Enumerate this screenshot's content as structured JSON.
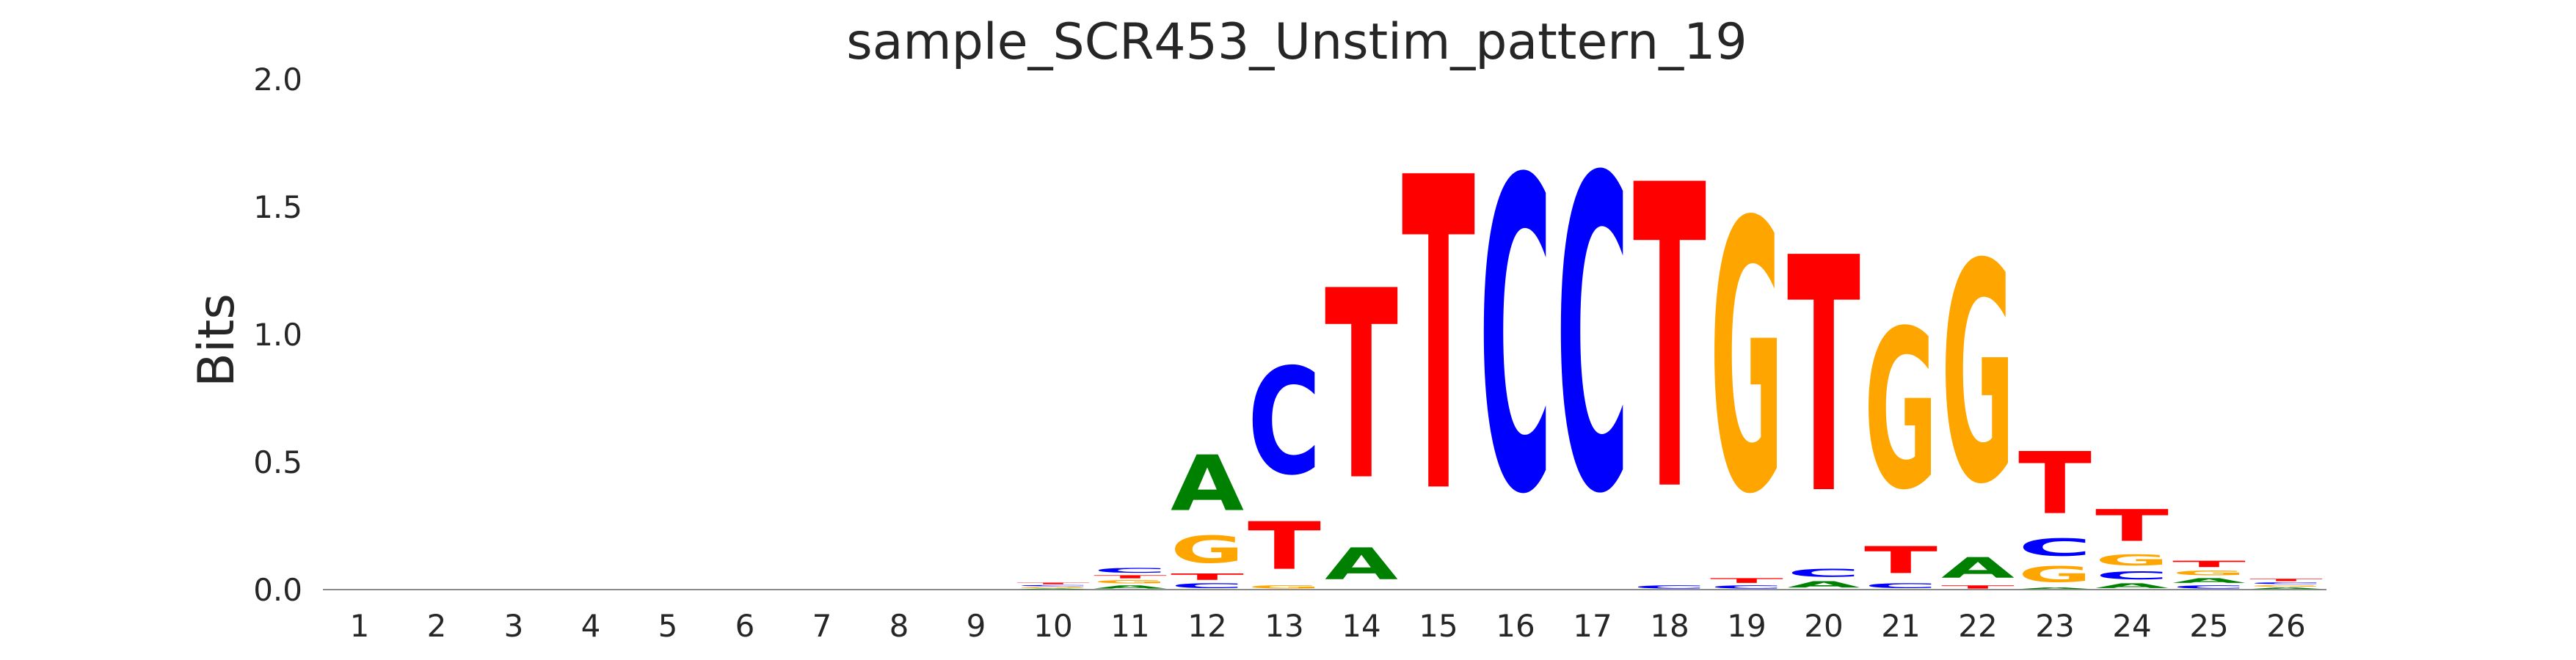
{
  "chart_data": {
    "type": "sequence-logo",
    "title": "sample_SCR453_Unstim_pattern_19",
    "ylabel": "Bits",
    "xlabel": "",
    "ylim": [
      0,
      2.0
    ],
    "yticks": [
      "0.0",
      "0.5",
      "1.0",
      "1.5",
      "2.0"
    ],
    "grid": false,
    "legend": "none",
    "colors": {
      "A": "#008000",
      "C": "#0000ff",
      "G": "#ffa500",
      "T": "#ff0000"
    },
    "positions": [
      {
        "pos": "1",
        "letters": []
      },
      {
        "pos": "2",
        "letters": []
      },
      {
        "pos": "3",
        "letters": []
      },
      {
        "pos": "4",
        "letters": []
      },
      {
        "pos": "5",
        "letters": []
      },
      {
        "pos": "6",
        "letters": []
      },
      {
        "pos": "7",
        "letters": []
      },
      {
        "pos": "8",
        "letters": []
      },
      {
        "pos": "9",
        "letters": []
      },
      {
        "pos": "10",
        "letters": [
          {
            "base": "A",
            "bits": 0.005
          },
          {
            "base": "G",
            "bits": 0.007
          },
          {
            "base": "C",
            "bits": 0.007
          },
          {
            "base": "T",
            "bits": 0.01
          }
        ]
      },
      {
        "pos": "11",
        "letters": [
          {
            "base": "A",
            "bits": 0.02
          },
          {
            "base": "G",
            "bits": 0.02
          },
          {
            "base": "T",
            "bits": 0.02
          },
          {
            "base": "C",
            "bits": 0.03
          }
        ]
      },
      {
        "pos": "12",
        "letters": [
          {
            "base": "C",
            "bits": 0.03
          },
          {
            "base": "T",
            "bits": 0.04
          },
          {
            "base": "G",
            "bits": 0.17
          },
          {
            "base": "A",
            "bits": 0.35
          }
        ]
      },
      {
        "pos": "13",
        "letters": [
          {
            "base": "G",
            "bits": 0.02
          },
          {
            "base": "T",
            "bits": 0.3
          },
          {
            "base": "C",
            "bits": 0.67
          }
        ]
      },
      {
        "pos": "14",
        "letters": [
          {
            "base": "A",
            "bits": 0.2
          },
          {
            "base": "T",
            "bits": 1.19
          }
        ]
      },
      {
        "pos": "15",
        "letters": [
          {
            "base": "T",
            "bits": 1.97
          }
        ]
      },
      {
        "pos": "16",
        "letters": [
          {
            "base": "C",
            "bits": 1.96
          }
        ]
      },
      {
        "pos": "17",
        "letters": [
          {
            "base": "C",
            "bits": 1.97
          }
        ]
      },
      {
        "pos": "18",
        "letters": [
          {
            "base": "C",
            "bits": 0.02
          },
          {
            "base": "T",
            "bits": 1.91
          }
        ]
      },
      {
        "pos": "19",
        "letters": [
          {
            "base": "C",
            "bits": 0.02
          },
          {
            "base": "T",
            "bits": 0.03
          },
          {
            "base": "G",
            "bits": 1.7
          }
        ]
      },
      {
        "pos": "20",
        "letters": [
          {
            "base": "A",
            "bits": 0.04
          },
          {
            "base": "C",
            "bits": 0.05
          },
          {
            "base": "T",
            "bits": 1.48
          }
        ]
      },
      {
        "pos": "21",
        "letters": [
          {
            "base": "C",
            "bits": 0.03
          },
          {
            "base": "T",
            "bits": 0.17
          },
          {
            "base": "G",
            "bits": 1.0
          }
        ]
      },
      {
        "pos": "22",
        "letters": [
          {
            "base": "T",
            "bits": 0.02
          },
          {
            "base": "A",
            "bits": 0.13
          },
          {
            "base": "G",
            "bits": 1.38
          }
        ]
      },
      {
        "pos": "23",
        "letters": [
          {
            "base": "A",
            "bits": 0.01
          },
          {
            "base": "G",
            "bits": 0.1
          },
          {
            "base": "C",
            "bits": 0.11
          },
          {
            "base": "T",
            "bits": 0.39
          }
        ]
      },
      {
        "pos": "24",
        "letters": [
          {
            "base": "A",
            "bits": 0.03
          },
          {
            "base": "C",
            "bits": 0.05
          },
          {
            "base": "G",
            "bits": 0.07
          },
          {
            "base": "T",
            "bits": 0.2
          }
        ]
      },
      {
        "pos": "25",
        "letters": [
          {
            "base": "C",
            "bits": 0.02
          },
          {
            "base": "A",
            "bits": 0.03
          },
          {
            "base": "G",
            "bits": 0.03
          },
          {
            "base": "T",
            "bits": 0.04
          }
        ]
      },
      {
        "pos": "26",
        "letters": [
          {
            "base": "A",
            "bits": 0.01
          },
          {
            "base": "G",
            "bits": 0.01
          },
          {
            "base": "C",
            "bits": 0.01
          },
          {
            "base": "T",
            "bits": 0.015
          }
        ]
      }
    ]
  }
}
